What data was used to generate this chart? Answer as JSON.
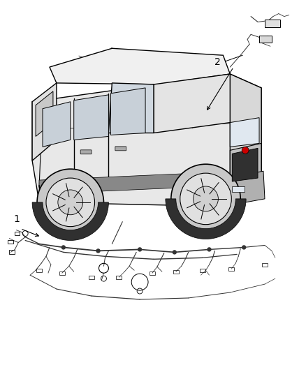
{
  "background_color": "#ffffff",
  "line_color": "#000000",
  "fig_width": 4.38,
  "fig_height": 5.33,
  "dpi": 100,
  "label1": "1",
  "label2": "2",
  "gray_fill": "#d0d0d0",
  "dark_fill": "#404040"
}
